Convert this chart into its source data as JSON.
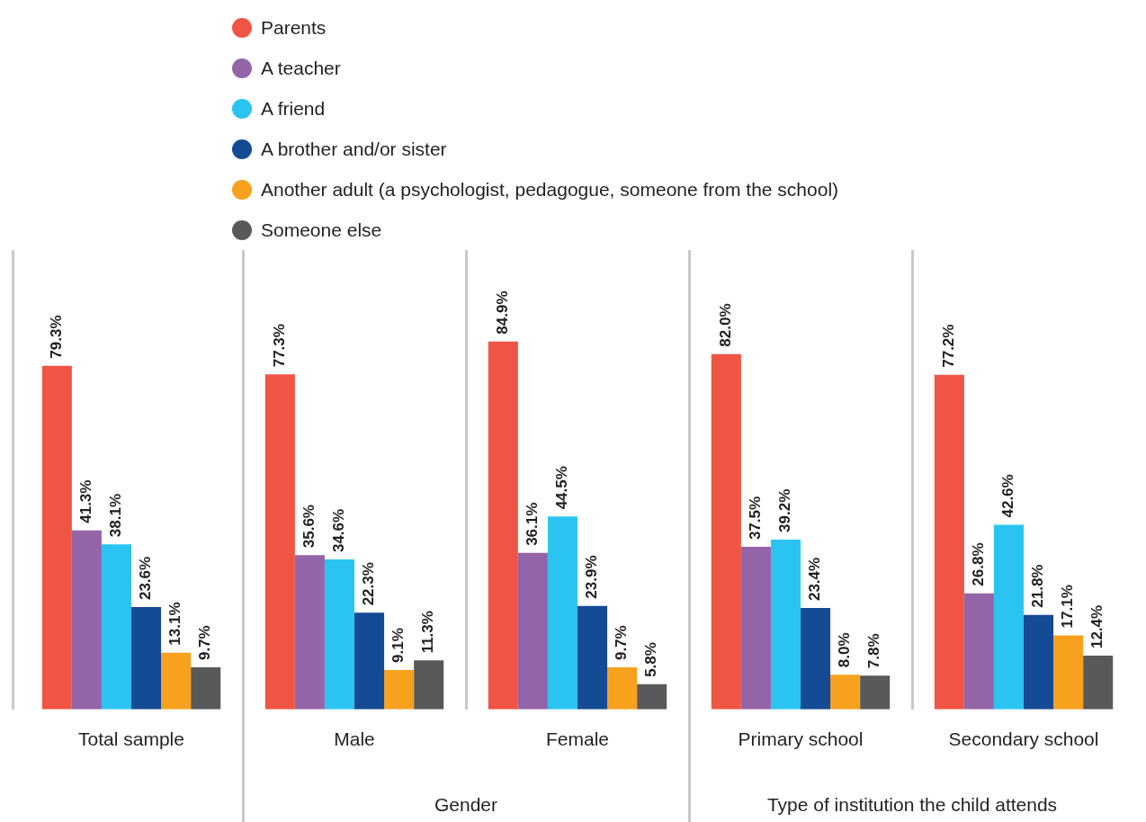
{
  "chart_data": {
    "type": "bar",
    "categories": [
      "Total sample",
      "Male",
      "Female",
      "Primary school",
      "Secondary school"
    ],
    "series": [
      {
        "name": "Parents",
        "color": "#ef5545",
        "values": [
          79.3,
          77.3,
          84.9,
          82.0,
          77.2
        ],
        "value_labels": [
          "79.3%",
          "77.3%",
          "84.9%",
          "82.0%",
          "77.2%"
        ]
      },
      {
        "name": "A teacher",
        "color": "#9464a8",
        "values": [
          41.3,
          35.6,
          36.1,
          37.5,
          26.8
        ],
        "value_labels": [
          "41.3%",
          "35.6%",
          "36.1%",
          "37.5%",
          "26.8%"
        ]
      },
      {
        "name": "A friend",
        "color": "#2bc4f0",
        "values": [
          38.1,
          34.6,
          44.5,
          39.2,
          42.6
        ],
        "value_labels": [
          "38.1%",
          "34.6%",
          "44.5%",
          "39.2%",
          "42.6%"
        ]
      },
      {
        "name": "A brother and/or sister",
        "color": "#154a94",
        "values": [
          23.6,
          22.3,
          23.9,
          23.4,
          21.8
        ],
        "value_labels": [
          "23.6%",
          "22.3%",
          "23.9%",
          "23.4%",
          "21.8%"
        ]
      },
      {
        "name": "Another adult (a psychologist, pedagogue, someone from the school)",
        "color": "#f7a11f",
        "values": [
          13.1,
          9.1,
          9.7,
          8.0,
          17.1
        ],
        "value_labels": [
          "13.1%",
          "9.1%",
          "9.7%",
          "8.0%",
          "17.1%"
        ]
      },
      {
        "name": "Someone else",
        "color": "#58595b",
        "values": [
          9.7,
          11.3,
          5.8,
          7.8,
          12.4
        ],
        "value_labels": [
          "9.7%",
          "11.3%",
          "5.8%",
          "7.8%",
          "12.4%"
        ]
      }
    ],
    "ylim": [
      0,
      106
    ],
    "annotations": [
      "Gender",
      "Type of institution the child attends"
    ],
    "legend": "top",
    "grid": false
  }
}
